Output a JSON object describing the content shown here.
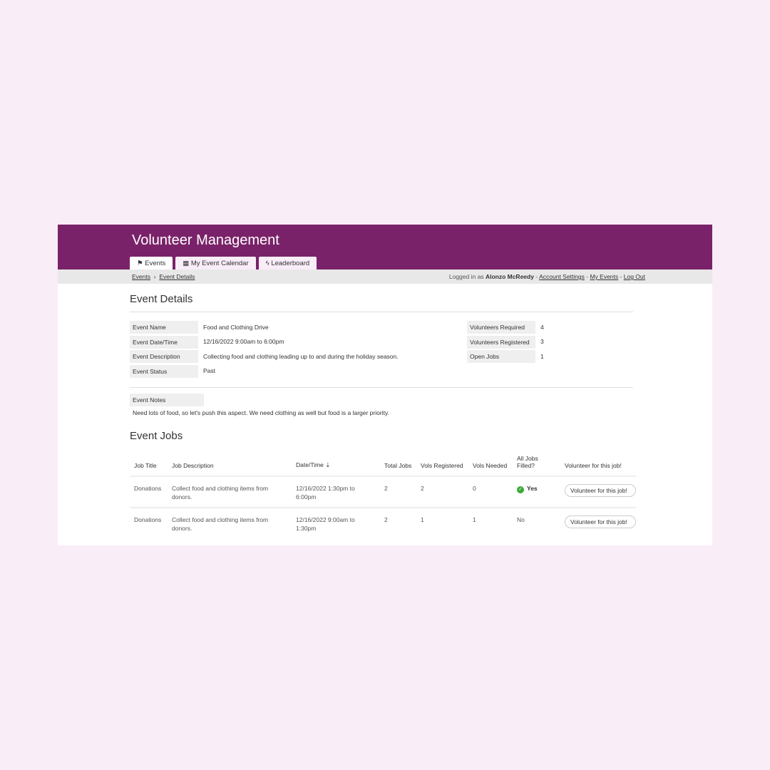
{
  "app": {
    "title": "Volunteer Management"
  },
  "tabs": [
    {
      "label": "Events",
      "icon": "flag-icon"
    },
    {
      "label": "My Event Calendar",
      "icon": "calendar-icon"
    },
    {
      "label": "Leaderboard",
      "icon": "bolt-icon"
    }
  ],
  "breadcrumb": {
    "items": [
      "Events",
      "Event Details"
    ],
    "separator": "›"
  },
  "user": {
    "prefix": "Logged in as",
    "name": "Alonzo McReedy",
    "links": [
      "Account Settings",
      "My Events",
      "Log Out"
    ],
    "sep": "-"
  },
  "details": {
    "heading": "Event Details",
    "left": [
      {
        "k": "Event Name",
        "v": "Food and Clothing Drive"
      },
      {
        "k": "Event Date/Time",
        "v": "12/16/2022 9:00am to 6:00pm"
      },
      {
        "k": "Event Description",
        "v": "Collecting food and clothing leading up to and during the holiday season."
      },
      {
        "k": "Event Status",
        "v": "Past"
      }
    ],
    "right": [
      {
        "k": "Volunteers Required",
        "v": "4"
      },
      {
        "k": "Volunteers Registered",
        "v": "3"
      },
      {
        "k": "Open Jobs",
        "v": "1"
      }
    ],
    "notes_label": "Event Notes",
    "notes": "Need lots of food, so let's push this aspect. We need clothing as well but food is a larger priority."
  },
  "jobs": {
    "heading": "Event Jobs",
    "columns": [
      "Job Title",
      "Job Description",
      "Date/Time",
      "Total Jobs",
      "Vols Registered",
      "Vols Needed",
      "All Jobs Filled?",
      "Volunteer for this job!"
    ],
    "sort_icon": "sort-icon",
    "rows": [
      {
        "title": "Donations",
        "desc": "Collect food and clothing items from donors.",
        "date": "12/16/2022 1:30pm to 6:00pm",
        "total": "2",
        "registered": "2",
        "needed": "0",
        "filled": "Yes",
        "button": "Volunteer for this job!"
      },
      {
        "title": "Donations",
        "desc": "Collect food and clothing items from donors.",
        "date": "12/16/2022 9:00am to 1:30pm",
        "total": "2",
        "registered": "1",
        "needed": "1",
        "filled": "No",
        "button": "Volunteer for this job!"
      }
    ]
  },
  "colors": {
    "brand": "#7a2269",
    "background": "#f9edf7",
    "success": "#3aa935"
  }
}
